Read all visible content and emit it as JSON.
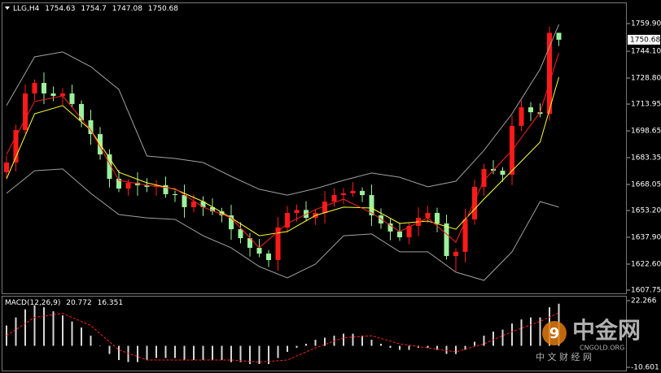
{
  "chart_data": {
    "type": "candlestick",
    "symbol": "LLG,H4",
    "open": [
      1675.0,
      1680.6,
      1699.1,
      1720.0,
      1726.0,
      1720.0,
      1718.6,
      1720.0,
      1714.0,
      1704.7,
      1696.8,
      1685.2,
      1671.3,
      1665.7,
      1669.0,
      1667.6,
      1666.7,
      1667.6,
      1662.5,
      1662.0,
      1655.1,
      1658.3,
      1655.1,
      1652.7,
      1650.4,
      1642.5,
      1637.4,
      1631.9,
      1628.6,
      1624.9,
      1643.5,
      1651.8,
      1653.5,
      1649.0,
      1651.8,
      1658.3,
      1662.0,
      1663.0,
      1664.4,
      1662.0,
      1650.4,
      1645.8,
      1641.2,
      1637.9,
      1644.4,
      1649.0,
      1651.8,
      1645.8,
      1627.2,
      1629.6,
      1648.1,
      1666.7,
      1676.9,
      1675.9,
      1673.6,
      1701.5,
      1712.1,
      1709.3,
      1708.4,
      1754.63
    ],
    "high": [
      1684.6,
      1702.1,
      1725.0,
      1728.0,
      1732.0,
      1724.0,
      1723.0,
      1725.0,
      1716.0,
      1710.7,
      1700.8,
      1688.2,
      1676.3,
      1671.0,
      1675.0,
      1671.6,
      1670.6,
      1672.6,
      1664.5,
      1668.0,
      1662.3,
      1661.3,
      1660.1,
      1654.7,
      1656.4,
      1646.5,
      1640.4,
      1636.9,
      1630.6,
      1649.5,
      1655.8,
      1656.5,
      1658.5,
      1653.8,
      1664.3,
      1666.0,
      1666.0,
      1669.4,
      1666.4,
      1668.0,
      1654.4,
      1648.8,
      1646.2,
      1646.4,
      1655.0,
      1655.8,
      1654.8,
      1650.8,
      1631.6,
      1654.1,
      1670.7,
      1679.9,
      1681.9,
      1677.9,
      1707.5,
      1716.1,
      1715.1,
      1714.3,
      1758.2,
      1754.7
    ],
    "low": [
      1672.0,
      1675.6,
      1697.1,
      1716.0,
      1714.0,
      1715.6,
      1713.6,
      1712.0,
      1700.7,
      1690.8,
      1682.2,
      1666.3,
      1663.7,
      1661.7,
      1661.6,
      1663.7,
      1661.7,
      1660.5,
      1658.0,
      1649.1,
      1652.1,
      1650.1,
      1650.7,
      1646.4,
      1636.5,
      1634.4,
      1626.9,
      1626.6,
      1620.9,
      1618.9,
      1640.5,
      1646.8,
      1647.0,
      1645.0,
      1645.8,
      1655.3,
      1657.0,
      1661.0,
      1658.0,
      1644.4,
      1642.8,
      1636.2,
      1635.9,
      1633.9,
      1638.4,
      1646.0,
      1640.8,
      1625.2,
      1618.5,
      1623.6,
      1645.1,
      1661.7,
      1673.9,
      1669.6,
      1667.6,
      1698.5,
      1704.3,
      1706.4,
      1704.4,
      1747.08
    ],
    "close": [
      1680.6,
      1699.1,
      1720.0,
      1726.0,
      1720.0,
      1718.6,
      1720.0,
      1714.0,
      1704.7,
      1696.8,
      1685.2,
      1671.3,
      1665.7,
      1669.0,
      1667.6,
      1666.7,
      1667.6,
      1662.5,
      1662.0,
      1655.1,
      1658.3,
      1655.1,
      1652.7,
      1650.4,
      1642.5,
      1637.4,
      1631.9,
      1628.6,
      1624.9,
      1643.5,
      1651.8,
      1653.5,
      1649.0,
      1651.8,
      1658.3,
      1662.0,
      1663.0,
      1664.4,
      1662.0,
      1650.4,
      1645.8,
      1641.2,
      1637.9,
      1644.4,
      1649.0,
      1651.8,
      1645.8,
      1627.2,
      1629.6,
      1648.1,
      1666.7,
      1676.9,
      1675.9,
      1673.6,
      1701.5,
      1712.1,
      1709.3,
      1708.4,
      1754.63,
      1750.68
    ],
    "up_color": "#ff1a1a",
    "down_color": "#9cf29c",
    "ylim": [
      1605.43,
      1771.5
    ],
    "yticks": [
      {
        "value": 1759.9,
        "label": "1759.90"
      },
      {
        "value": 1744.1,
        "label": "1744.10"
      },
      {
        "value": 1728.8,
        "label": "1728.80"
      },
      1713.95,
      1698.65,
      1683.35,
      1668.05,
      {
        "value": 1653.2,
        "label": "1653.20"
      },
      {
        "value": 1637.9,
        "label": "1637.90"
      },
      {
        "value": 1622.6,
        "label": "1622.60"
      },
      1607.75
    ],
    "lines": [
      {
        "color": "#a0a0a0",
        "x": [
          0,
          3,
          6,
          9,
          12,
          15,
          18,
          21,
          24,
          27,
          30,
          33,
          36,
          39,
          42,
          45,
          48,
          51,
          54,
          57,
          59
        ],
        "values": [
          1713.1,
          1740.9,
          1743.7,
          1735.3,
          1722.3,
          1684.3,
          1682.9,
          1680.6,
          1672.7,
          1665.3,
          1662.0,
          1665.7,
          1670.4,
          1674.6,
          1672.2,
          1666.7,
          1669.9,
          1687.5,
          1708.4,
          1733.9,
          1759.4
        ]
      },
      {
        "color": "#a0a0a0",
        "x": [
          0,
          3,
          6,
          9,
          12,
          15,
          18,
          21,
          24,
          27,
          30,
          33,
          36,
          39,
          42,
          45,
          48,
          51,
          54,
          57,
          59
        ],
        "values": [
          1663.0,
          1675.9,
          1676.9,
          1663.0,
          1650.9,
          1649.0,
          1648.1,
          1638.8,
          1631.9,
          1621.2,
          1614.7,
          1622.6,
          1638.8,
          1639.8,
          1629.6,
          1629.6,
          1618.0,
          1613.3,
          1629.6,
          1658.3,
          1655.1
        ]
      },
      {
        "color": "#ffff33",
        "x": [
          0,
          3,
          6,
          9,
          12,
          15,
          18,
          21,
          24,
          27,
          30,
          33,
          36,
          39,
          42,
          45,
          48,
          51,
          54,
          57,
          59
        ],
        "values": [
          1671.3,
          1708.4,
          1713.1,
          1699.1,
          1675.0,
          1669.0,
          1665.3,
          1658.3,
          1649.0,
          1638.8,
          1641.2,
          1650.4,
          1655.1,
          1654.6,
          1645.8,
          1647.2,
          1642.5,
          1659.7,
          1675.9,
          1692.2,
          1729.3
        ]
      },
      {
        "color": "#ff2020",
        "x": [
          0,
          3,
          6,
          9,
          12,
          15,
          18,
          21,
          24,
          27,
          30,
          33,
          36,
          39,
          42,
          45,
          48,
          51,
          54,
          57,
          59
        ],
        "values": [
          1685.2,
          1715.4,
          1718.6,
          1699.1,
          1670.4,
          1667.6,
          1665.7,
          1655.1,
          1649.0,
          1631.9,
          1645.8,
          1653.7,
          1659.7,
          1651.8,
          1641.2,
          1649.0,
          1635.1,
          1670.4,
          1687.5,
          1709.3,
          1743.2
        ]
      }
    ],
    "macd": {
      "label": "MACD(12,26,9)",
      "histogram": [
        10,
        14,
        18,
        20,
        19,
        17,
        15,
        12,
        9,
        5,
        0,
        -4,
        -7,
        -8,
        -8,
        -7,
        -6,
        -6,
        -6,
        -7,
        -7,
        -7,
        -7,
        -7,
        -8,
        -8,
        -9,
        -9,
        -9,
        -6,
        -3,
        -1,
        1,
        3,
        4,
        5,
        6,
        6,
        5,
        3,
        1,
        -1,
        -2,
        -2,
        -1,
        -1,
        -2,
        -4,
        -4,
        -2,
        2,
        5,
        7,
        8,
        11,
        13,
        14,
        14,
        19,
        20.772
      ],
      "hist_color": "#d8d8d8",
      "signal": {
        "color": "#ff2020",
        "x": [
          0,
          3,
          6,
          9,
          12,
          15,
          18,
          21,
          24,
          27,
          30,
          33,
          36,
          39,
          42,
          45,
          48,
          51,
          54,
          57,
          59
        ],
        "values": [
          5,
          14,
          16,
          10,
          -2,
          -7,
          -7,
          -7,
          -7,
          -8,
          -7,
          -1,
          4,
          5,
          1,
          -1,
          -3,
          1,
          7,
          12,
          16.351
        ]
      },
      "ylim": [
        -12.6,
        24.27
      ],
      "yticks": [
        22.266,
        -10.601
      ]
    }
  },
  "watermark": {
    "brand": "中金网",
    "site": "CNGOLD.ORG",
    "sub": "中 文 财 经 网"
  }
}
